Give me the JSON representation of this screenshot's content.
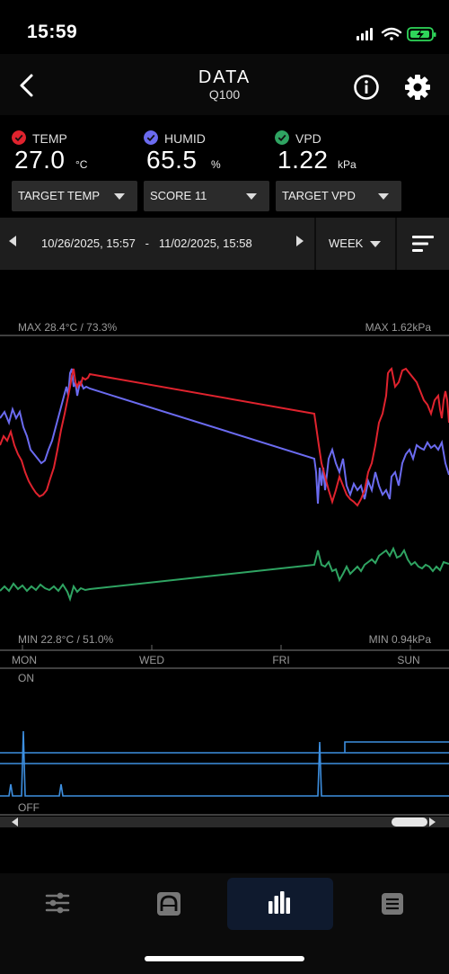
{
  "status": {
    "time": "15:59"
  },
  "header": {
    "title": "DATA",
    "subtitle": "Q100"
  },
  "readings": [
    {
      "label": "TEMP",
      "value": "27.0",
      "unit": "°C",
      "color": "#e0232e"
    },
    {
      "label": "HUMID",
      "value": "65.5",
      "unit": "%",
      "color": "#6b6bf0"
    },
    {
      "label": "VPD",
      "value": "1.22",
      "unit": "kPa",
      "color": "#2fa462"
    }
  ],
  "dropdowns": [
    "TARGET TEMP",
    "SCORE 11",
    "TARGET VPD"
  ],
  "date_range": "10/26/2025, 15:57   -   11/02/2025, 15:58",
  "period": "WEEK",
  "chart": {
    "max_left": "MAX 28.4°C / 73.3%",
    "max_right": "MAX 1.62kPa",
    "min_left": "MIN 22.8°C / 51.0%",
    "min_right": "MIN 0.94kPa",
    "days": [
      "MON",
      "WED",
      "FRI",
      "SUN"
    ],
    "on_label": "ON",
    "off_label": "OFF"
  },
  "colors": {
    "temp": "#e0232e",
    "humid": "#6b6bf0",
    "vpd": "#2fa462",
    "device": "#3d8fe0"
  },
  "nav": [
    {
      "name": "settings-sliders-icon",
      "active": false
    },
    {
      "name": "arch-icon",
      "active": false
    },
    {
      "name": "bar-chart-icon",
      "active": true
    },
    {
      "name": "list-icon",
      "active": false
    }
  ]
}
